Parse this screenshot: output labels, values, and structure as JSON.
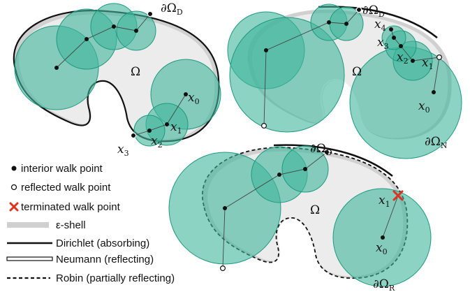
{
  "panels": [
    {
      "name": "dirichlet",
      "omega_label": "Ω",
      "boundary_labels": [
        "∂ΩD"
      ],
      "walk_labels": [
        "x0",
        "x1",
        "x2",
        "x3"
      ]
    },
    {
      "name": "neumann",
      "omega_label": "Ω",
      "boundary_labels": [
        "∂ΩD",
        "∂ΩN"
      ],
      "walk_labels": [
        "x0",
        "x1",
        "x2",
        "x3",
        "x4"
      ]
    },
    {
      "name": "robin",
      "omega_label": "Ω",
      "boundary_labels": [
        "∂ΩD",
        "∂ΩR"
      ],
      "walk_labels": [
        "x0",
        "x1"
      ]
    }
  ],
  "legend": [
    {
      "label": "interior walk point",
      "symbol": "filled-dot-icon"
    },
    {
      "label": "reflected walk point",
      "symbol": "hollow-dot-icon"
    },
    {
      "label": "terminated walk point",
      "symbol": "red-cross-icon"
    },
    {
      "label": "ε-shell",
      "symbol": "gray-band-icon"
    },
    {
      "label": "Dirichlet (absorbing)",
      "symbol": "solid-line-icon"
    },
    {
      "label": "Neumann (reflecting)",
      "symbol": "double-line-icon"
    },
    {
      "label": "Robin (partially reflecting)",
      "symbol": "dashed-line-icon"
    }
  ],
  "colors": {
    "disk_fill": "#3fb59c",
    "disk_stroke": "#1e9a80",
    "shell": "#d0d0d0",
    "domain": "#ececec",
    "terminated": "#e0301e"
  }
}
